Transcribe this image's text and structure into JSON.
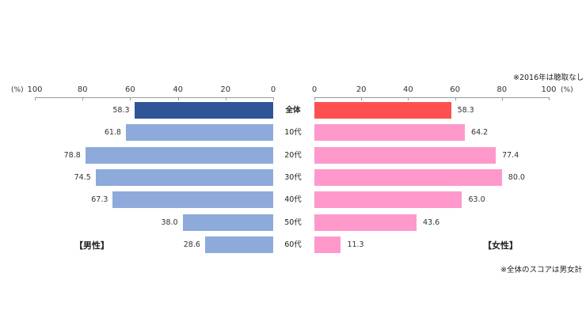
{
  "chart_data": {
    "type": "bar",
    "orientation": "horizontal-butterfly",
    "categories": [
      "全体",
      "10代",
      "20代",
      "30代",
      "40代",
      "50代",
      "60代"
    ],
    "series": [
      {
        "name": "【男性】",
        "side": "left",
        "values": [
          58.3,
          61.8,
          78.8,
          74.5,
          67.3,
          38.0,
          28.6
        ],
        "color": "#8eaadb",
        "highlight_color": "#2f5597"
      },
      {
        "name": "【女性】",
        "side": "right",
        "values": [
          58.3,
          64.2,
          77.4,
          80.0,
          63.0,
          43.6,
          11.3
        ],
        "color": "#ff99cc",
        "highlight_color": "#ff5050"
      }
    ],
    "xlim": [
      0,
      100
    ],
    "left_ticks": [
      "100",
      "80",
      "60",
      "40",
      "20",
      "0"
    ],
    "right_ticks": [
      "0",
      "20",
      "40",
      "60",
      "80",
      "100"
    ],
    "unit_left": "(%)",
    "unit_right": "(%)",
    "annotations": [
      "※2016年は聴取なし",
      "※全体のスコアは男女計"
    ],
    "grid": false
  },
  "labels": {
    "unit_left": "(%)",
    "unit_right": "(%)",
    "left_ticks": [
      "100",
      "80",
      "60",
      "40",
      "20",
      "0"
    ],
    "right_ticks": [
      "0",
      "20",
      "40",
      "60",
      "80",
      "100"
    ],
    "categories": [
      "全体",
      "10代",
      "20代",
      "30代",
      "40代",
      "50代",
      "60代"
    ],
    "male_values": [
      "58.3",
      "61.8",
      "78.8",
      "74.5",
      "67.3",
      "38.0",
      "28.6"
    ],
    "female_values": [
      "58.3",
      "64.2",
      "77.4",
      "80.0",
      "63.0",
      "43.6",
      "11.3"
    ],
    "legend_male": "【男性】",
    "legend_female": "【女性】",
    "note_top": "※2016年は聴取なし",
    "note_bottom": "※全体のスコアは男女計"
  }
}
